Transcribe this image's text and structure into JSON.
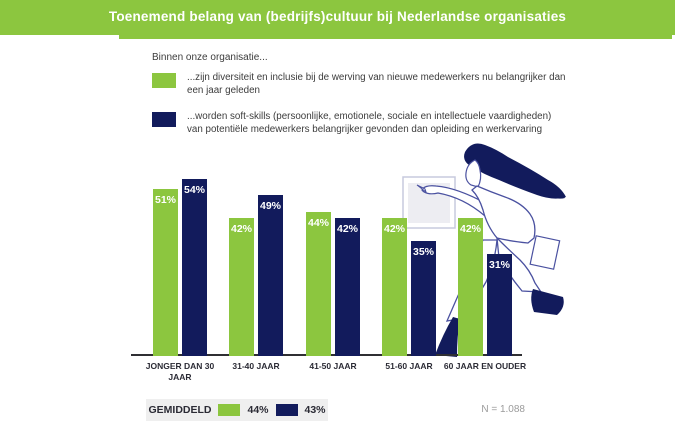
{
  "header": {
    "title": "Toenemend belang van (bedrijfs)cultuur bij Nederlandse organisaties",
    "bg_color": "#8CC63F",
    "text_color": "#FFFFFF"
  },
  "legend": {
    "intro": "Binnen onze organisatie...",
    "items": [
      {
        "color": "#8CC63F",
        "label": "...zijn diversiteit en inclusie bij de werving van nieuwe medewerkers nu belangrijker dan een jaar geleden"
      },
      {
        "color": "#121B5C",
        "label": "...worden soft-skills (persoonlijke, emotionele, sociale en intellectuele vaardigheden) van potentiële medewerkers belangrijker gevonden dan opleiding en werkervaring"
      }
    ]
  },
  "chart_data": {
    "type": "bar",
    "title": "Toenemend belang van (bedrijfs)cultuur bij Nederlandse organisaties",
    "categories": [
      "JONGER DAN 30 JAAR",
      "31-40 JAAR",
      "41-50 JAAR",
      "51-60 JAAR",
      "60 JAAR EN OUDER"
    ],
    "series": [
      {
        "name": "...zijn diversiteit en inclusie bij de werving van nieuwe medewerkers nu belangrijker dan een jaar geleden",
        "color": "#8CC63F",
        "values": [
          51,
          42,
          44,
          42,
          42
        ]
      },
      {
        "name": "...worden soft-skills van potentiële medewerkers belangrijker gevonden dan opleiding en werkervaring",
        "color": "#121B5C",
        "values": [
          54,
          49,
          42,
          35,
          31
        ]
      }
    ],
    "value_suffix": "%",
    "xlabel": "",
    "ylabel": "",
    "ylim": [
      0,
      60
    ],
    "grid": false,
    "data_labels": "inside-top, white bold",
    "legend_position": "top-left"
  },
  "footer": {
    "average_label": "GEMIDDELD",
    "averages": [
      {
        "color": "#8CC63F",
        "value": "44%"
      },
      {
        "color": "#121B5C",
        "value": "43%"
      }
    ],
    "sample_size": "N = 1.088"
  },
  "colors": {
    "green": "#8CC63F",
    "navy": "#121B5C",
    "axis": "#2F2F33",
    "box_bg": "#EFEFEF",
    "muted_text": "#9B9B9B",
    "body_text": "#3C3C3C",
    "illustration_outline": "#4A51A0",
    "whiteboard_fill": "#EDEDF2"
  }
}
